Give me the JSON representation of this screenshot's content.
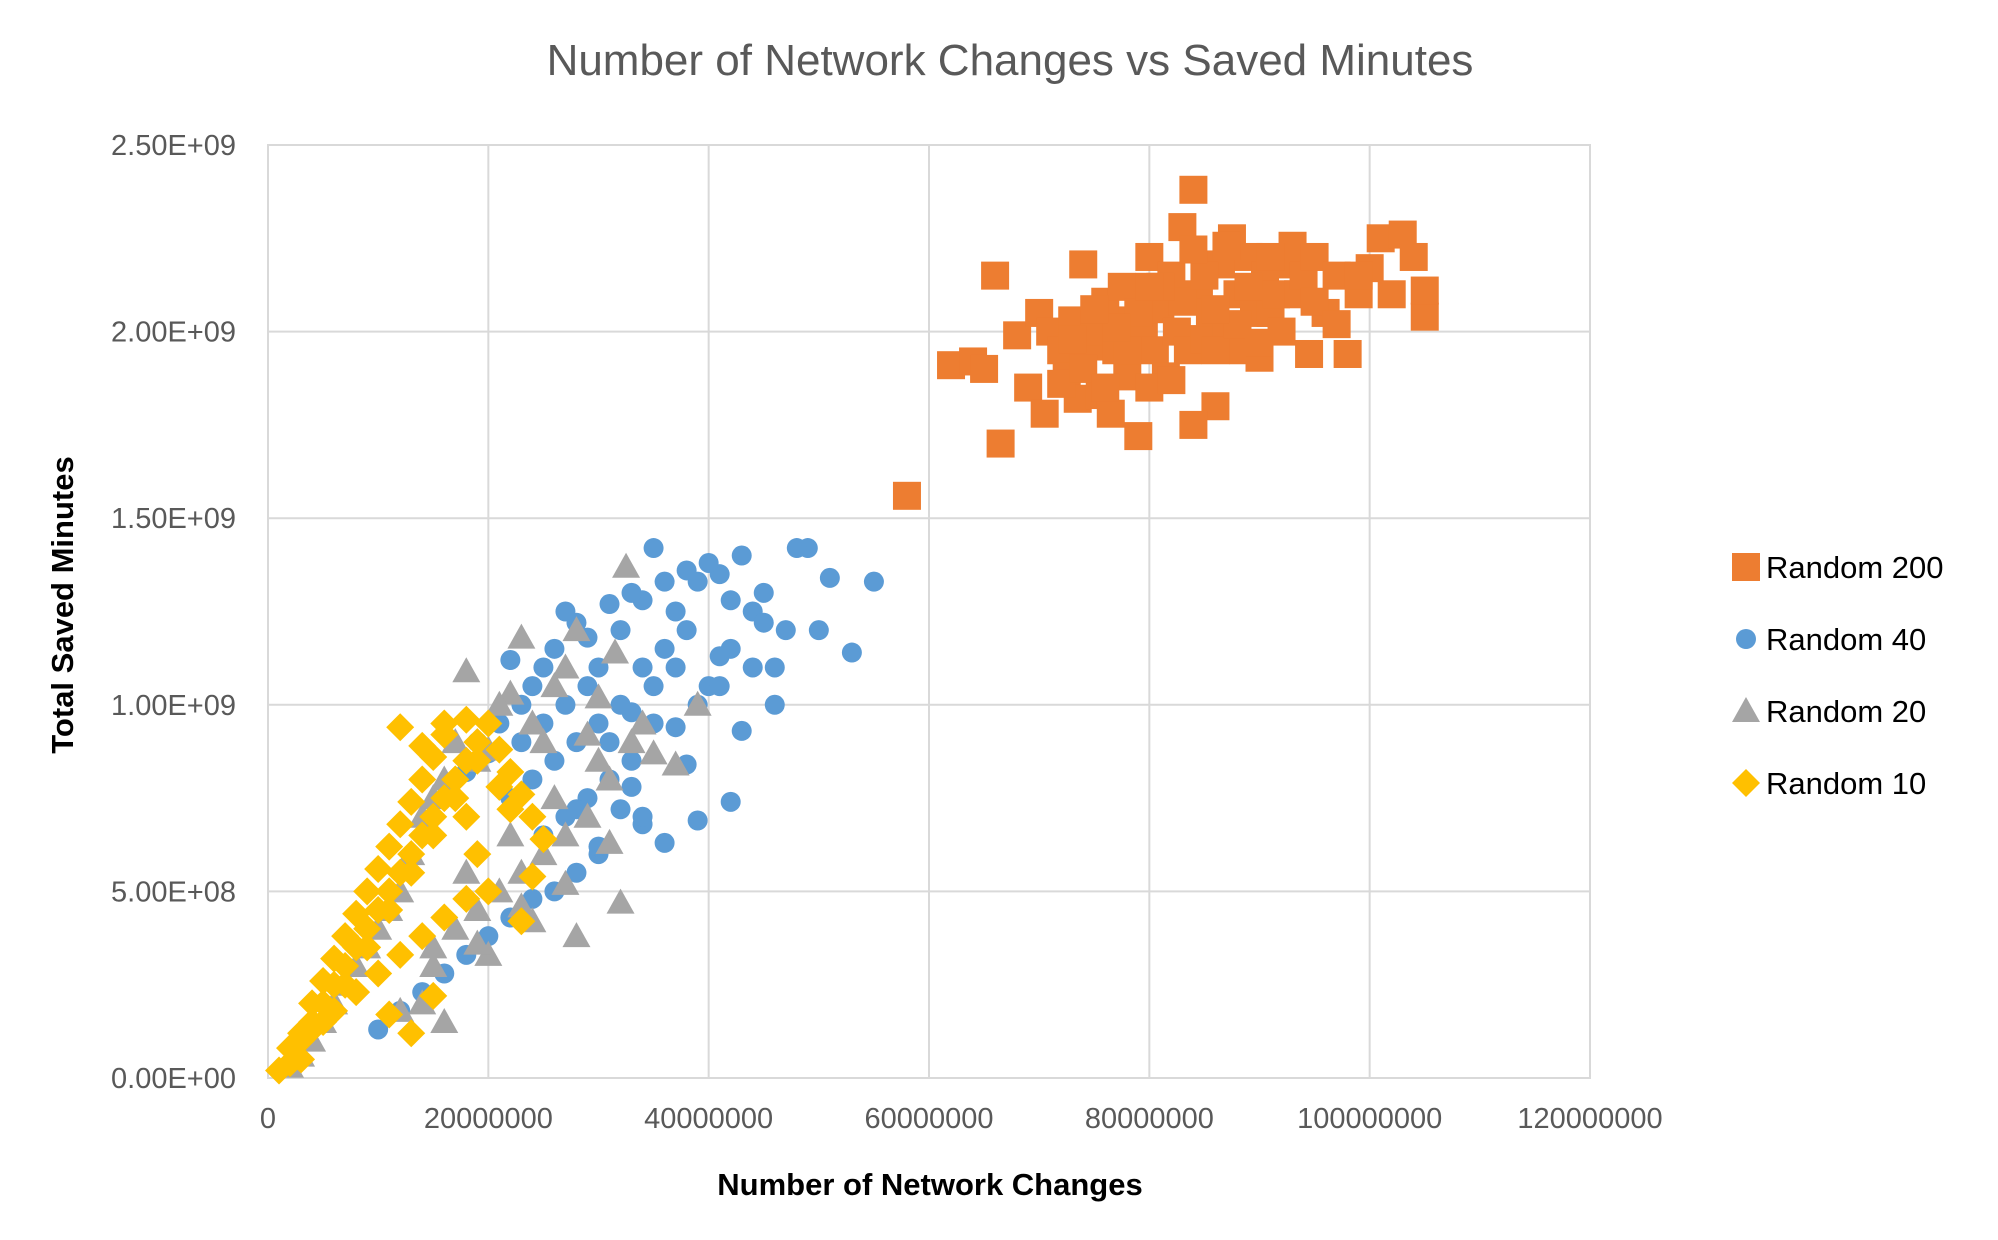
{
  "chart_data": {
    "type": "scatter",
    "title": "Number of Network Changes vs Saved Minutes",
    "xlabel": "Number of Network Changes",
    "ylabel": "Total Saved Minutes",
    "xlim": [
      0,
      120000000
    ],
    "ylim": [
      0,
      2500000000
    ],
    "x_ticks": [
      0,
      20000000,
      40000000,
      60000000,
      80000000,
      100000000,
      120000000
    ],
    "x_tick_labels": [
      "0",
      "20000000",
      "40000000",
      "60000000",
      "80000000",
      "100000000",
      "120000000"
    ],
    "y_ticks": [
      0,
      500000000,
      1000000000,
      1500000000,
      2000000000,
      2500000000
    ],
    "y_tick_labels": [
      "0.00E+00",
      "5.00E+08",
      "1.00E+09",
      "1.50E+09",
      "2.00E+09",
      "2.50E+09"
    ],
    "grid": true,
    "legend_position": "right",
    "series": [
      {
        "name": "Random 200",
        "marker": "square",
        "color": "#ED7D31",
        "x": [
          58000000,
          62000000,
          64000000,
          65000000,
          66000000,
          66500000,
          68000000,
          69000000,
          70000000,
          70500000,
          71000000,
          72000000,
          72500000,
          73000000,
          73500000,
          74000000,
          74500000,
          75000000,
          75500000,
          76000000,
          76500000,
          77000000,
          77500000,
          78000000,
          78500000,
          79000000,
          79500000,
          80000000,
          80500000,
          81000000,
          81500000,
          82000000,
          82500000,
          83000000,
          83500000,
          84000000,
          84500000,
          85000000,
          85500000,
          86000000,
          86500000,
          87000000,
          87500000,
          88000000,
          88500000,
          89000000,
          89500000,
          90000000,
          90500000,
          91000000,
          91500000,
          92000000,
          92500000,
          93000000,
          93500000,
          94000000,
          94500000,
          95000000,
          96000000,
          97000000,
          98000000,
          99000000,
          100000000,
          101000000,
          102000000,
          103000000,
          104000000,
          105000000,
          105000000,
          72000000,
          74000000,
          76000000,
          78000000,
          80000000,
          82000000,
          84000000,
          86000000,
          88000000,
          90000000,
          79000000,
          83000000,
          85000000,
          87000000,
          81000000,
          77000000,
          75000000,
          73000000,
          89000000,
          91000000,
          95000000,
          97000000,
          99000000,
          84000000,
          86000000,
          80000000
        ],
        "y": [
          1560000000,
          1910000000,
          1920000000,
          1900000000,
          2150000000,
          1700000000,
          1990000000,
          1850000000,
          2050000000,
          1780000000,
          2000000000,
          1950000000,
          1880000000,
          2030000000,
          1820000000,
          2180000000,
          1960000000,
          2000000000,
          1830000000,
          2080000000,
          1780000000,
          1950000000,
          2120000000,
          1880000000,
          2030000000,
          1720000000,
          2000000000,
          2200000000,
          1950000000,
          2060000000,
          1880000000,
          2150000000,
          2000000000,
          2280000000,
          1950000000,
          2380000000,
          2100000000,
          1980000000,
          2050000000,
          1800000000,
          2180000000,
          2000000000,
          2250000000,
          2100000000,
          1950000000,
          2200000000,
          2050000000,
          1930000000,
          2150000000,
          2050000000,
          2100000000,
          2000000000,
          2180000000,
          2230000000,
          2100000000,
          2150000000,
          1940000000,
          2200000000,
          2050000000,
          2150000000,
          1940000000,
          2100000000,
          2170000000,
          2250000000,
          2100000000,
          2260000000,
          2200000000,
          2040000000,
          2110000000,
          1860000000,
          1900000000,
          1850000000,
          1950000000,
          1850000000,
          1870000000,
          1750000000,
          1950000000,
          2020000000,
          1970000000,
          2050000000,
          2080000000,
          2150000000,
          2230000000,
          2120000000,
          2010000000,
          2060000000,
          1980000000,
          2120000000,
          2200000000,
          2080000000,
          2020000000,
          2150000000,
          2220000000,
          2060000000,
          2120000000
        ]
      },
      {
        "name": "Random 40",
        "marker": "circle",
        "color": "#5B9BD5",
        "x": [
          55000000,
          53000000,
          51000000,
          50000000,
          49000000,
          48000000,
          47000000,
          46000000,
          45000000,
          44000000,
          43000000,
          42000000,
          41000000,
          40000000,
          39000000,
          38000000,
          37000000,
          36000000,
          35000000,
          34000000,
          33000000,
          32000000,
          31000000,
          30000000,
          29000000,
          28000000,
          27000000,
          26000000,
          25000000,
          24000000,
          23000000,
          22000000,
          21000000,
          20000000,
          19000000,
          18000000,
          42000000,
          39000000,
          37000000,
          35000000,
          33000000,
          31000000,
          29000000,
          27000000,
          25000000,
          23000000,
          46000000,
          44000000,
          42000000,
          40000000,
          38000000,
          36000000,
          34000000,
          32000000,
          30000000,
          28000000,
          26000000,
          24000000,
          22000000,
          43000000,
          41000000,
          39000000,
          37000000,
          35000000,
          33000000,
          31000000,
          29000000,
          27000000,
          25000000,
          36000000,
          34000000,
          32000000,
          30000000,
          28000000,
          26000000,
          24000000,
          22000000,
          20000000,
          18000000,
          16000000,
          14000000,
          12000000,
          10000000,
          30000000,
          34000000,
          38000000,
          33000000,
          28000000,
          41000000,
          45000000
        ],
        "y": [
          1330000000,
          1140000000,
          1340000000,
          1200000000,
          1420000000,
          1420000000,
          1200000000,
          1100000000,
          1300000000,
          1250000000,
          1400000000,
          1280000000,
          1350000000,
          1380000000,
          1330000000,
          1360000000,
          1250000000,
          1330000000,
          1420000000,
          1280000000,
          1300000000,
          1200000000,
          1270000000,
          1100000000,
          1180000000,
          1220000000,
          1250000000,
          1150000000,
          1100000000,
          1050000000,
          1000000000,
          1120000000,
          950000000,
          870000000,
          900000000,
          820000000,
          740000000,
          690000000,
          940000000,
          1050000000,
          980000000,
          900000000,
          1050000000,
          1000000000,
          950000000,
          900000000,
          1000000000,
          1100000000,
          1150000000,
          1050000000,
          1200000000,
          1150000000,
          1100000000,
          1000000000,
          950000000,
          900000000,
          850000000,
          800000000,
          750000000,
          930000000,
          1050000000,
          1000000000,
          1100000000,
          950000000,
          850000000,
          800000000,
          750000000,
          700000000,
          650000000,
          630000000,
          680000000,
          720000000,
          600000000,
          550000000,
          500000000,
          480000000,
          430000000,
          380000000,
          330000000,
          280000000,
          230000000,
          180000000,
          130000000,
          620000000,
          700000000,
          840000000,
          780000000,
          720000000,
          1130000000,
          1220000000
        ]
      },
      {
        "name": "Random 20",
        "marker": "triangle",
        "color": "#A5A5A5",
        "x": [
          32000000,
          32500000,
          31500000,
          30000000,
          29000000,
          28000000,
          27000000,
          26000000,
          25000000,
          24000000,
          23000000,
          22000000,
          21000000,
          20000000,
          19000000,
          18000000,
          17000000,
          16000000,
          15000000,
          14000000,
          13000000,
          12000000,
          11000000,
          10000000,
          9000000,
          8000000,
          7000000,
          6000000,
          5000000,
          4000000,
          3000000,
          2000000,
          39000000,
          37000000,
          35000000,
          33000000,
          31000000,
          29000000,
          27000000,
          25000000,
          23000000,
          21000000,
          19000000,
          17000000,
          15000000,
          34000000,
          30000000,
          26000000,
          22000000,
          18000000,
          16000000,
          14000000,
          12000000,
          28000000,
          24000000,
          20000000,
          31000000,
          27000000,
          23000000,
          19000000,
          15000000
        ],
        "y": [
          470000000,
          1370000000,
          1140000000,
          1020000000,
          920000000,
          1200000000,
          1100000000,
          1050000000,
          900000000,
          950000000,
          1180000000,
          1030000000,
          1000000000,
          880000000,
          850000000,
          1090000000,
          900000000,
          800000000,
          750000000,
          700000000,
          600000000,
          500000000,
          450000000,
          400000000,
          350000000,
          300000000,
          250000000,
          200000000,
          150000000,
          100000000,
          60000000,
          30000000,
          1000000000,
          840000000,
          870000000,
          900000000,
          800000000,
          700000000,
          650000000,
          600000000,
          550000000,
          500000000,
          450000000,
          400000000,
          350000000,
          950000000,
          850000000,
          750000000,
          650000000,
          550000000,
          150000000,
          200000000,
          180000000,
          380000000,
          420000000,
          330000000,
          630000000,
          520000000,
          460000000,
          360000000,
          300000000
        ]
      },
      {
        "name": "Random 10",
        "marker": "diamond",
        "color": "#FFC000",
        "x": [
          1000000,
          2000000,
          3000000,
          4000000,
          5000000,
          6000000,
          7000000,
          8000000,
          9000000,
          10000000,
          11000000,
          12000000,
          13000000,
          14000000,
          15000000,
          16000000,
          17000000,
          18000000,
          19000000,
          20000000,
          21000000,
          22000000,
          23000000,
          24000000,
          25000000,
          2000000,
          3000000,
          4000000,
          5000000,
          6000000,
          7000000,
          8000000,
          9000000,
          10000000,
          11000000,
          12000000,
          13000000,
          14000000,
          15000000,
          16000000,
          17000000,
          18000000,
          19000000,
          20000000,
          3000000,
          5000000,
          7000000,
          9000000,
          11000000,
          13000000,
          15000000,
          17000000,
          19000000,
          21000000,
          23000000,
          4000000,
          6000000,
          8000000,
          10000000,
          12000000,
          14000000,
          16000000,
          18000000,
          22000000,
          24000000,
          11000000,
          13000000,
          15000000,
          12000000,
          14000000,
          16000000,
          18000000
        ],
        "y": [
          20000000,
          40000000,
          100000000,
          150000000,
          200000000,
          250000000,
          300000000,
          350000000,
          400000000,
          450000000,
          500000000,
          550000000,
          600000000,
          650000000,
          700000000,
          750000000,
          800000000,
          850000000,
          900000000,
          950000000,
          880000000,
          820000000,
          760000000,
          700000000,
          640000000,
          80000000,
          120000000,
          200000000,
          260000000,
          320000000,
          380000000,
          440000000,
          500000000,
          560000000,
          620000000,
          680000000,
          740000000,
          800000000,
          860000000,
          920000000,
          800000000,
          700000000,
          600000000,
          500000000,
          50000000,
          150000000,
          250000000,
          350000000,
          450000000,
          550000000,
          650000000,
          750000000,
          850000000,
          780000000,
          420000000,
          130000000,
          180000000,
          230000000,
          280000000,
          330000000,
          380000000,
          430000000,
          480000000,
          720000000,
          540000000,
          170000000,
          120000000,
          220000000,
          940000000,
          890000000,
          950000000,
          960000000
        ]
      }
    ]
  }
}
